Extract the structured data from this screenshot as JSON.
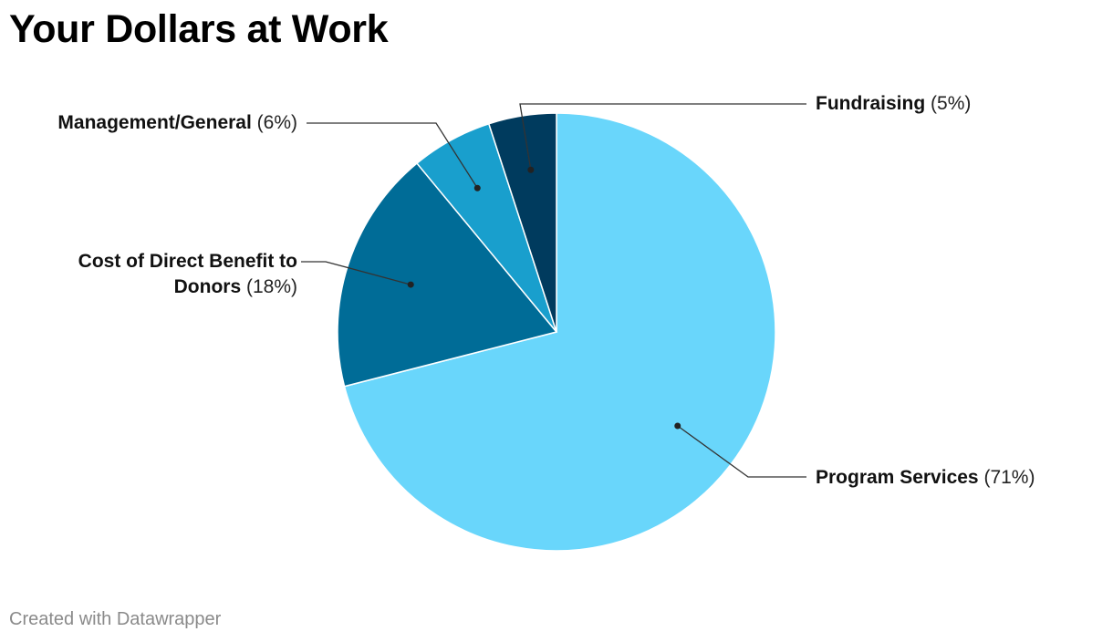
{
  "title": "Your Dollars at Work",
  "footer": "Created with Datawrapper",
  "chart_data": {
    "type": "pie",
    "title": "Your Dollars at Work",
    "slices": [
      {
        "label": "Program Services",
        "value": 71,
        "pct_text": "(71%)",
        "color": "#69d6fb"
      },
      {
        "label": "Cost of Direct Benefit to Donors",
        "value": 18,
        "pct_text": "(18%)",
        "color": "#006c97"
      },
      {
        "label": "Management/General",
        "value": 6,
        "pct_text": "(6%)",
        "color": "#199fcd"
      },
      {
        "label": "Fundraising",
        "value": 5,
        "pct_text": "(5%)",
        "color": "#003b5e"
      }
    ]
  }
}
